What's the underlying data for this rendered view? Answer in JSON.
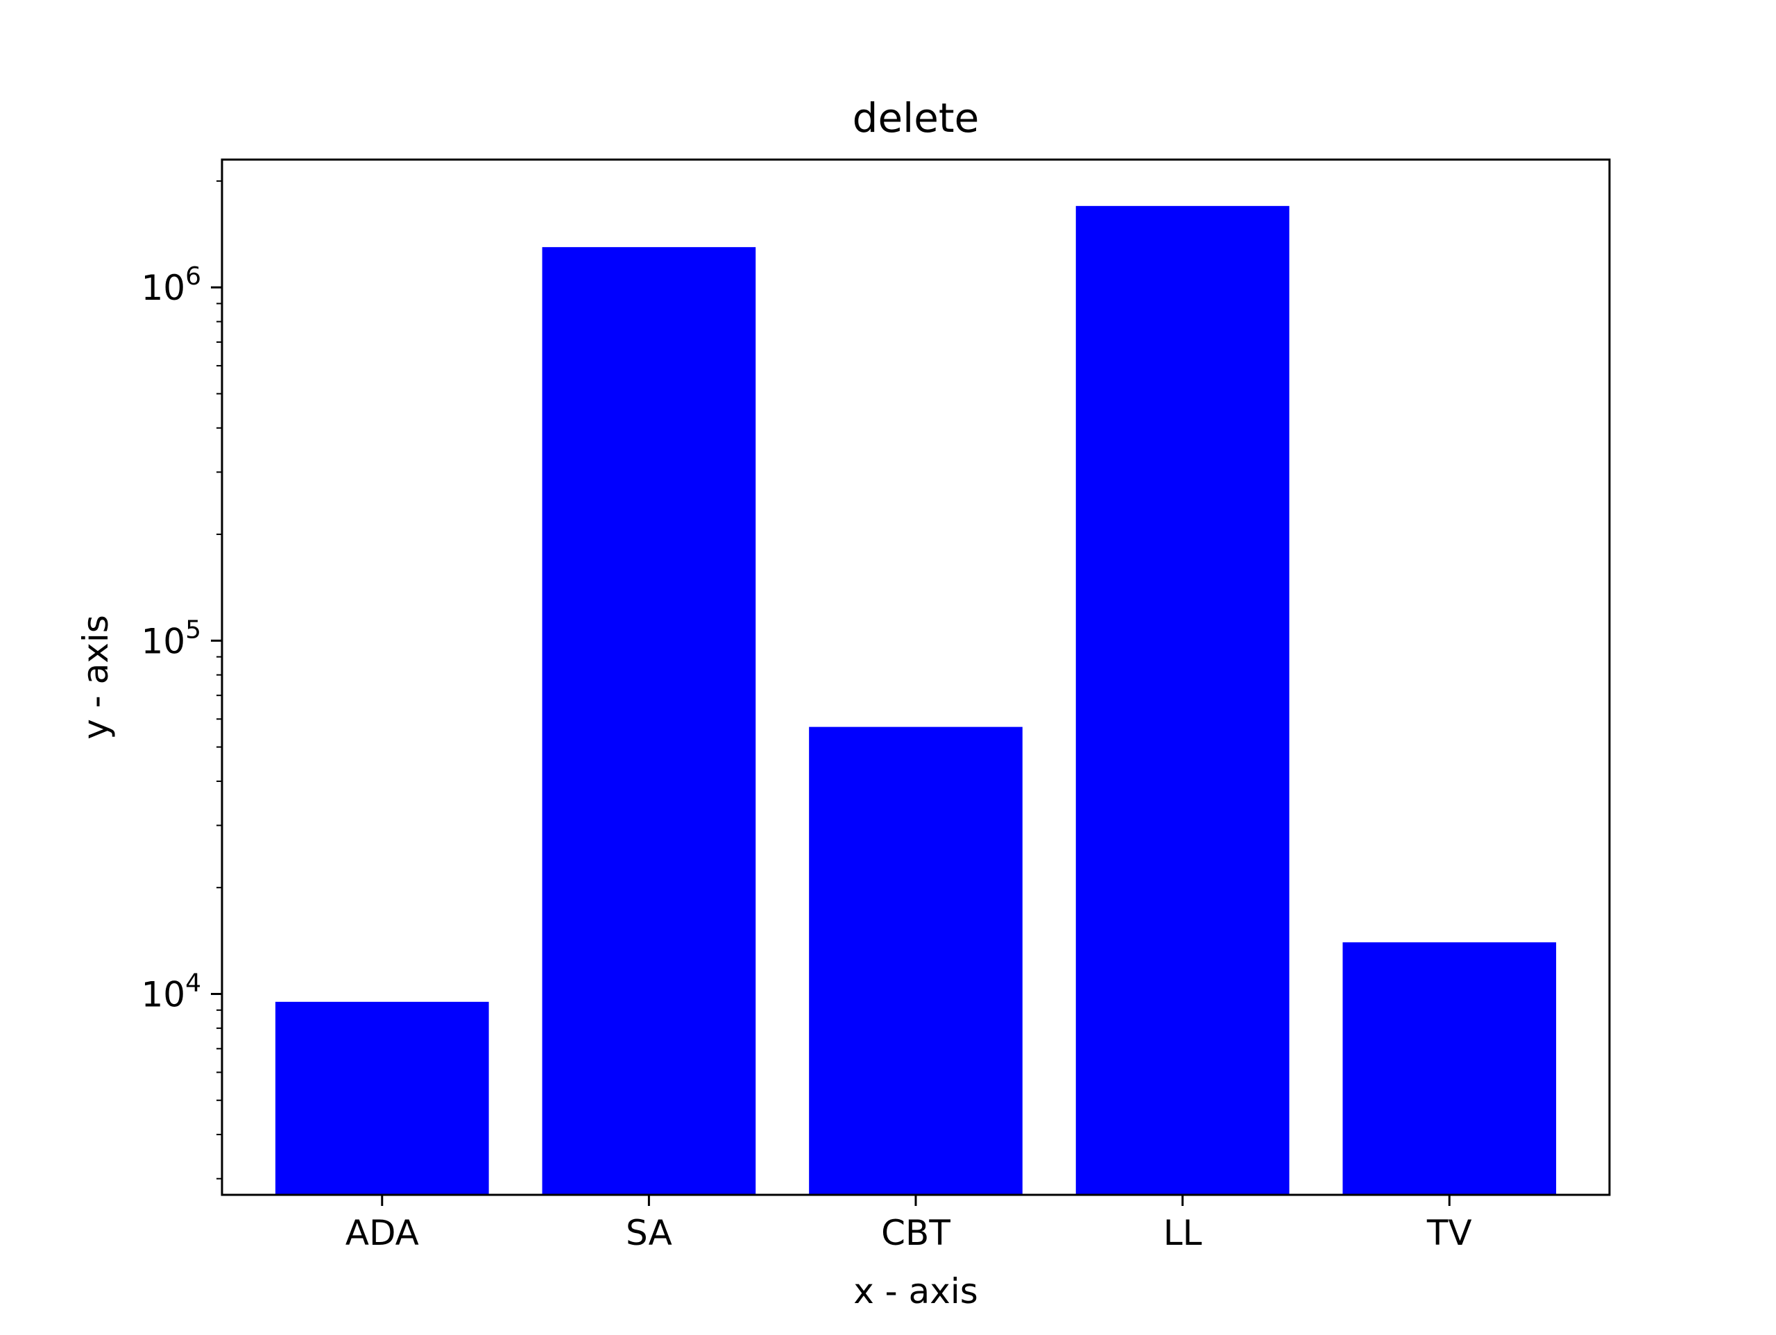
{
  "chart_data": {
    "type": "bar",
    "title": "delete",
    "xlabel": "x - axis",
    "ylabel": "y - axis",
    "categories": [
      "ADA",
      "SA",
      "CBT",
      "LL",
      "TV"
    ],
    "values": [
      9500,
      1300000,
      57000,
      1700000,
      14000
    ],
    "yscale": "log",
    "ylim": [
      2700,
      2300000
    ],
    "yticks": [
      {
        "value": 10000,
        "base": "10",
        "exp": "4"
      },
      {
        "value": 100000,
        "base": "10",
        "exp": "5"
      },
      {
        "value": 1000000,
        "base": "10",
        "exp": "6"
      }
    ],
    "bar_color": "#0000ff",
    "grid": false,
    "legend": "none"
  }
}
